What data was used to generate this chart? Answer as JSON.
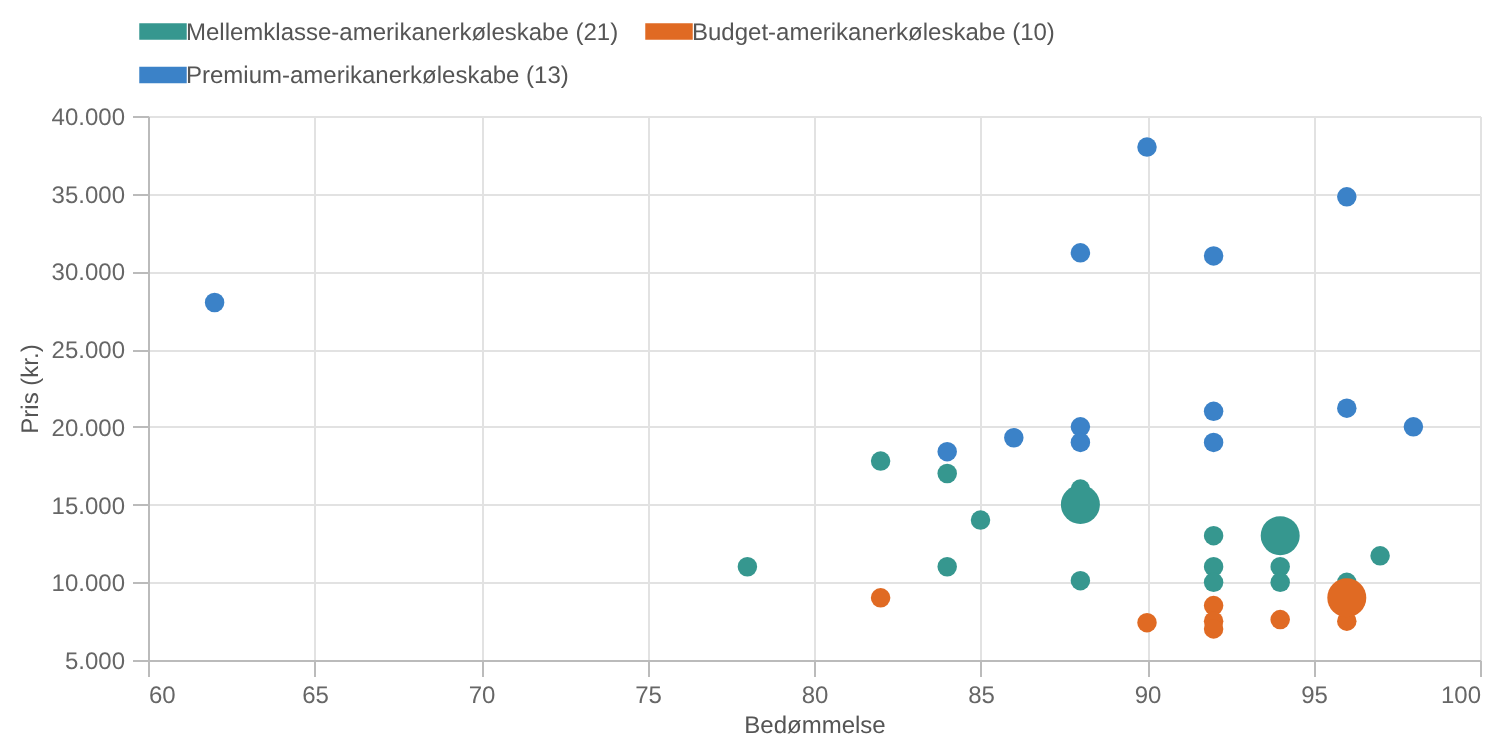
{
  "chart_data": {
    "type": "bubble",
    "xlabel": "Bedømmelse",
    "ylabel": "Pris (kr.)",
    "xlim": [
      60,
      100
    ],
    "xticks": [
      60,
      65,
      70,
      75,
      80,
      85,
      90,
      95,
      100
    ],
    "ylim": [
      5000,
      40000
    ],
    "yticks": [
      {
        "value": 5000,
        "label": "5.000"
      },
      {
        "value": 10000,
        "label": "10.000"
      },
      {
        "value": 15000,
        "label": "15.000"
      },
      {
        "value": 20000,
        "label": "20.000"
      },
      {
        "value": 25000,
        "label": "25.000"
      },
      {
        "value": 30000,
        "label": "30.000"
      },
      {
        "value": 35000,
        "label": "35.000"
      },
      {
        "value": 40000,
        "label": "40.000"
      }
    ],
    "grid": true,
    "legend": "top left",
    "series": [
      {
        "name": "Mellemklasse-amerikanerkøleskabe (21)",
        "color": "#36978f",
        "x": [
          78,
          82,
          84,
          84,
          85,
          88,
          88,
          88,
          92,
          92,
          92,
          94,
          94,
          94,
          96,
          97
        ],
        "values": [
          11000,
          17800,
          17000,
          11000,
          14000,
          16000,
          15000,
          10100,
          13000,
          11000,
          10000,
          13000,
          11000,
          10000,
          10000,
          11700
        ],
        "sizes": [
          0.25,
          0.25,
          0.25,
          0.25,
          0.25,
          0.25,
          1,
          0.25,
          0.25,
          0.25,
          0.25,
          1,
          0.25,
          0.25,
          0.25,
          0.25
        ]
      },
      {
        "name": "Budget-amerikanerkøleskabe (10)",
        "color": "#e06a23",
        "x": [
          82,
          90,
          92,
          92,
          92,
          94,
          96,
          96
        ],
        "values": [
          9000,
          7400,
          8500,
          7500,
          7000,
          7600,
          7500,
          9000
        ],
        "sizes": [
          0.25,
          0.25,
          0.25,
          0.25,
          0.25,
          0.25,
          0.25,
          1
        ]
      },
      {
        "name": "Premium-amerikanerkøleskabe (13)",
        "color": "#3b82c8",
        "x": [
          62,
          84,
          86,
          88,
          88,
          88,
          90,
          92,
          92,
          92,
          96,
          96,
          98
        ],
        "values": [
          28000,
          18400,
          19300,
          20000,
          19000,
          31200,
          38000,
          31000,
          21000,
          19000,
          34800,
          21200,
          20000
        ],
        "sizes": [
          0.25,
          0.25,
          0.25,
          0.25,
          0.25,
          0.25,
          0.25,
          0.25,
          0.25,
          0.25,
          0.25,
          0.25,
          0.25
        ]
      }
    ]
  }
}
